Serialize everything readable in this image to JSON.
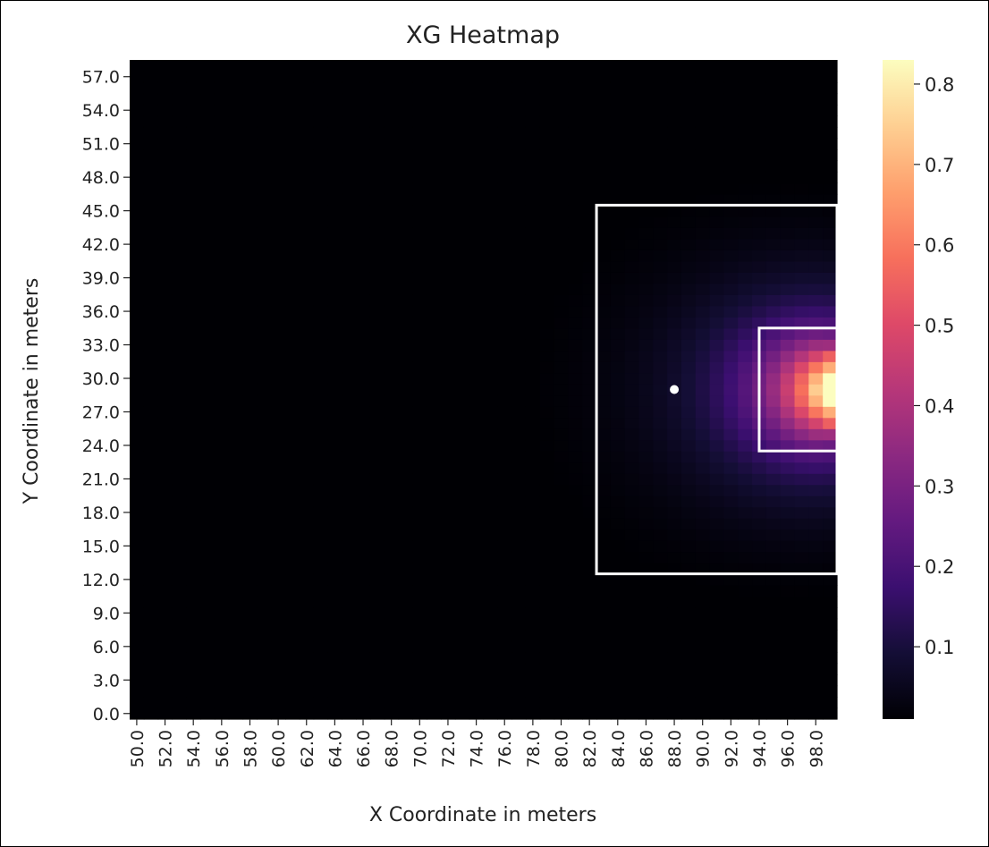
{
  "chart_data": {
    "type": "heatmap",
    "title": "XG Heatmap",
    "xlabel": "X Coordinate in meters",
    "ylabel": "Y Coordinate in meters",
    "x_range": [
      50,
      100
    ],
    "y_range": [
      0,
      59
    ],
    "x_ticks": [
      "50.0",
      "52.0",
      "54.0",
      "56.0",
      "58.0",
      "60.0",
      "62.0",
      "64.0",
      "66.0",
      "68.0",
      "70.0",
      "72.0",
      "74.0",
      "76.0",
      "78.0",
      "80.0",
      "82.0",
      "84.0",
      "86.0",
      "88.0",
      "90.0",
      "92.0",
      "94.0",
      "96.0",
      "98.0"
    ],
    "y_ticks": [
      "0.0",
      "3.0",
      "6.0",
      "9.0",
      "12.0",
      "15.0",
      "18.0",
      "21.0",
      "24.0",
      "27.0",
      "30.0",
      "33.0",
      "36.0",
      "39.0",
      "42.0",
      "45.0",
      "48.0",
      "51.0",
      "54.0",
      "57.0"
    ],
    "colorbar": {
      "range": [
        0.01,
        0.83
      ],
      "ticks": [
        "0.1",
        "0.2",
        "0.3",
        "0.4",
        "0.5",
        "0.6",
        "0.7",
        "0.8"
      ],
      "colormap": "magma"
    },
    "value_model": {
      "goal": {
        "x": 100,
        "y": 29.5
      },
      "peak_value": 0.83,
      "description": "xG value rises toward the goal center at x=100, y=29.5; ~0.8 in six-yard box, ~0.4-0.5 near penalty spot area edge, ~0.1-0.2 inside penalty box, near 0 far away"
    },
    "overlays": {
      "penalty_box": {
        "x": [
          83,
          100
        ],
        "y": [
          13,
          46
        ],
        "color": "#ffffff"
      },
      "six_yard_box": {
        "x": [
          94.5,
          100
        ],
        "y": [
          24,
          35
        ],
        "color": "#ffffff"
      },
      "penalty_spot": {
        "x": 88.5,
        "y": 29.5,
        "color": "#ffffff"
      }
    }
  }
}
